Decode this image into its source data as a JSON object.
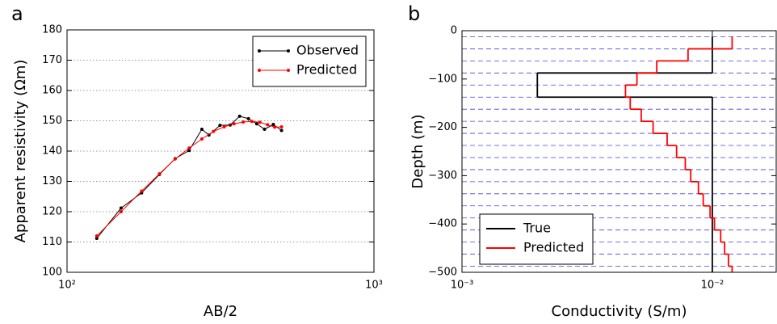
{
  "chart_data": [
    {
      "type": "line",
      "panel_label": "a",
      "xlabel": "AB/2",
      "ylabel": "Apparent resistivity (Ωm)",
      "xscale": "log",
      "xlim": [
        100,
        1000
      ],
      "xticks": [
        {
          "value": 100,
          "label": "10²"
        },
        {
          "value": 1000,
          "label": "10³"
        }
      ],
      "ylim": [
        100,
        180
      ],
      "yticks": [
        100,
        110,
        120,
        130,
        140,
        150,
        160,
        170,
        180
      ],
      "grid": true,
      "legend": "upper right",
      "series": [
        {
          "name": "Observed",
          "color": "#000000",
          "marker": "o",
          "x": [
            125,
            150,
            175,
            200,
            225,
            250,
            275,
            290,
            315,
            340,
            365,
            390,
            415,
            440,
            470,
            500
          ],
          "values": [
            111.2,
            121.2,
            126.2,
            132.3,
            137.5,
            140.2,
            147.2,
            145.3,
            148.5,
            148.6,
            151.5,
            150.7,
            149,
            147.2,
            148.8,
            146.8
          ]
        },
        {
          "name": "Predicted",
          "color": "#ff0000",
          "marker": "o",
          "x": [
            125,
            150,
            175,
            200,
            225,
            250,
            275,
            300,
            325,
            350,
            375,
            400,
            425,
            450,
            475,
            500
          ],
          "values": [
            112,
            120,
            126.8,
            132.5,
            137.4,
            141,
            144,
            146.5,
            148,
            149,
            149.6,
            149.8,
            149.5,
            148.7,
            147.9,
            148
          ]
        }
      ]
    },
    {
      "type": "step",
      "panel_label": "b",
      "xlabel": "Conductivity (S/m)",
      "ylabel": "Depth (m)",
      "xscale": "log",
      "xlim": [
        0.001,
        0.018
      ],
      "xticks": [
        {
          "value": 0.001,
          "label": "10⁻³"
        },
        {
          "value": 0.01,
          "label": "10⁻²"
        }
      ],
      "ylim": [
        -500,
        0
      ],
      "yticks": [
        {
          "value": -500,
          "label": "−500"
        },
        {
          "value": -400,
          "label": "−400"
        },
        {
          "value": -300,
          "label": "−300"
        },
        {
          "value": -200,
          "label": "−200"
        },
        {
          "value": -100,
          "label": "−100"
        },
        0
      ],
      "legend": "lower left",
      "boundary_color": "#4444dd",
      "boundaries": [
        -12.5,
        -37.5,
        -62.5,
        -87.5,
        -112.5,
        -137.5,
        -162.5,
        -187.5,
        -212.5,
        -237.5,
        -262.5,
        -287.5,
        -312.5,
        -337.5,
        -362.5,
        -387.5,
        -412.5,
        -437.5,
        -462.5,
        -487.5,
        -500
      ],
      "series": [
        {
          "name": "True",
          "color": "#000000",
          "values": [
            0.01,
            0.01,
            0.01,
            0.002,
            0.002,
            0.01,
            0.01,
            0.01,
            0.01,
            0.01,
            0.01,
            0.01,
            0.01,
            0.01,
            0.01,
            0.01,
            0.01,
            0.01,
            0.01,
            0.01
          ]
        },
        {
          "name": "Predicted",
          "color": "#ff0000",
          "values": [
            0.012,
            0.008,
            0.006,
            0.005,
            0.0045,
            0.0047,
            0.0052,
            0.0058,
            0.0066,
            0.0072,
            0.0078,
            0.0082,
            0.0088,
            0.0092,
            0.0098,
            0.0102,
            0.0108,
            0.0112,
            0.0116,
            0.012
          ]
        }
      ]
    }
  ]
}
